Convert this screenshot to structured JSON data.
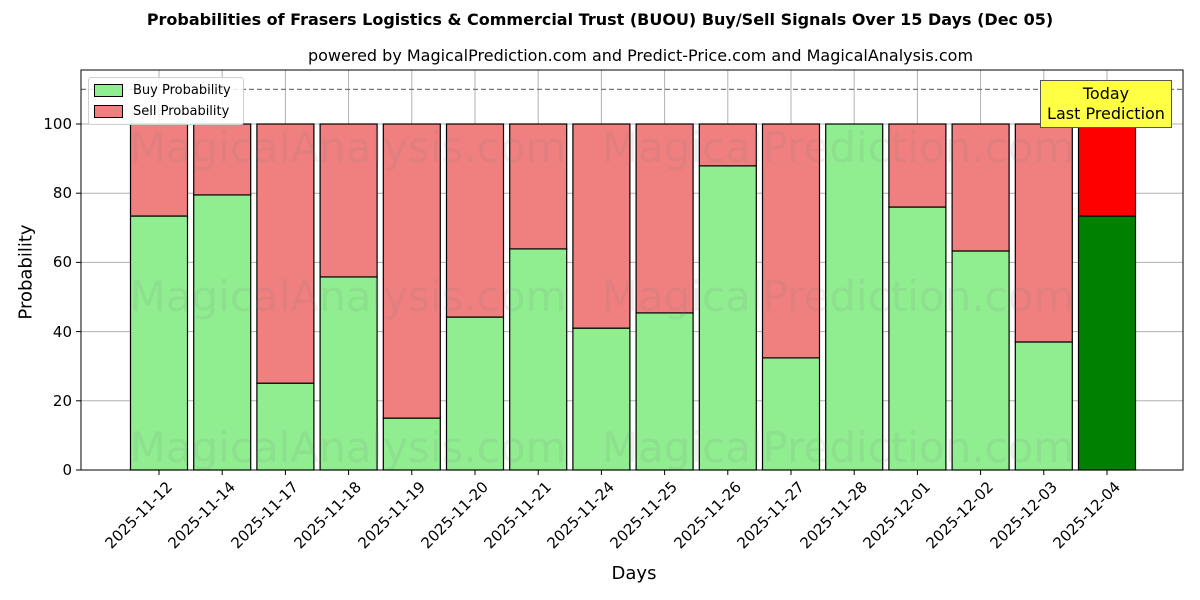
{
  "title": "Probabilities of Frasers Logistics & Commercial Trust (BUOU) Buy/Sell Signals Over 15 Days (Dec 05)",
  "subtitle": "powered by MagicalPrediction.com and Predict-Price.com and MagicalAnalysis.com",
  "legend": {
    "buy_label": "Buy Probability",
    "sell_label": "Sell Probability"
  },
  "annotation": {
    "line1": "Today",
    "line2": "Last Prediction"
  },
  "watermarks": [
    "MagicalAnalysis.com",
    "MagicalPrediction.com"
  ],
  "colors": {
    "buy": "#90ee90",
    "sell": "#f08080",
    "today_buy": "#008000",
    "today_sell": "#ff0000",
    "annotation_bg": "#ffff44"
  },
  "chart_data": {
    "type": "bar",
    "stacked": true,
    "title": "Probabilities of Frasers Logistics & Commercial Trust (BUOU) Buy/Sell Signals Over 15 Days (Dec 05)",
    "subtitle": "powered by MagicalPrediction.com and Predict-Price.com and MagicalAnalysis.com",
    "xlabel": "Days",
    "ylabel": "Probability",
    "ylim": [
      0,
      115
    ],
    "yticks": [
      0,
      20,
      40,
      60,
      80,
      100
    ],
    "grid": true,
    "legend_position": "upper left",
    "reference_line": {
      "y": 110,
      "style": "dashed"
    },
    "categories": [
      "2025-11-12",
      "2025-11-14",
      "2025-11-17",
      "2025-11-18",
      "2025-11-19",
      "2025-11-20",
      "2025-11-21",
      "2025-11-24",
      "2025-11-25",
      "2025-11-26",
      "2025-11-27",
      "2025-11-28",
      "2025-12-01",
      "2025-12-02",
      "2025-12-03",
      "2025-12-04"
    ],
    "series": [
      {
        "name": "Buy Probability",
        "values": [
          73.4,
          79.5,
          25.1,
          55.8,
          15.0,
          44.2,
          63.9,
          41.0,
          45.4,
          87.9,
          32.4,
          100.0,
          76.0,
          63.3,
          37.0,
          73.4
        ]
      },
      {
        "name": "Sell Probability",
        "values": [
          26.6,
          20.5,
          74.9,
          44.2,
          85.0,
          55.8,
          36.1,
          59.0,
          54.6,
          12.1,
          67.6,
          0.0,
          24.0,
          36.7,
          63.0,
          26.6
        ]
      }
    ],
    "annotations": [
      {
        "text": "Today\nLast Prediction",
        "x": "2025-12-04"
      }
    ]
  }
}
